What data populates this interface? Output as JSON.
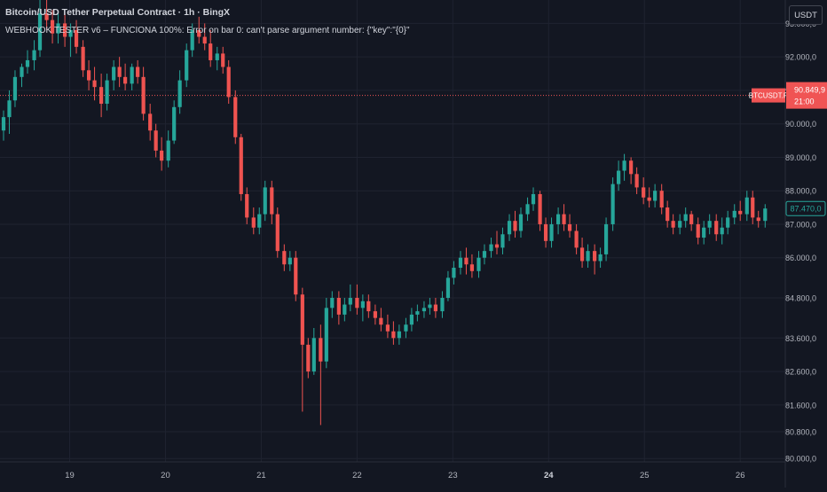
{
  "header": {
    "title": "Bitcoin/USD Tether Perpetual Contract · 1h · BingX",
    "message": "WEBHOOK TESTER v6 – FUNCIONA 100%: Error on bar 0: can't parse argument number: {\"key\":\"{0}\""
  },
  "currency_button": "USDT",
  "colors": {
    "background": "#131722",
    "grid": "#1f2330",
    "up": "#26a69a",
    "down": "#ef5350",
    "text": "#b2b5be"
  },
  "chart_data": {
    "type": "candlestick",
    "x_ticks": [
      {
        "label": "19",
        "t": 19.0,
        "bold": false
      },
      {
        "label": "20",
        "t": 20.0,
        "bold": false
      },
      {
        "label": "21",
        "t": 21.0,
        "bold": false
      },
      {
        "label": "22",
        "t": 22.0,
        "bold": false
      },
      {
        "label": "23",
        "t": 23.0,
        "bold": false
      },
      {
        "label": "24",
        "t": 24.0,
        "bold": true
      },
      {
        "label": "25",
        "t": 25.0,
        "bold": false
      },
      {
        "label": "26",
        "t": 26.0,
        "bold": false
      }
    ],
    "x_range": [
      18.31,
      26.35
    ],
    "y_ticks": [
      {
        "label": "93.000,0",
        "v": 93000
      },
      {
        "label": "92.000,0",
        "v": 92000
      },
      {
        "label": "91.000,0",
        "v": 91000
      },
      {
        "label": "90.000,0",
        "v": 90000
      },
      {
        "label": "89.000,0",
        "v": 89000
      },
      {
        "label": "88.000,0",
        "v": 88000
      },
      {
        "label": "87.000,0",
        "v": 87000
      },
      {
        "label": "86.000,0",
        "v": 86000
      },
      {
        "label": "84.800,0",
        "v": 84800
      },
      {
        "label": "83.600,0",
        "v": 83600
      },
      {
        "label": "82.600,0",
        "v": 82600
      },
      {
        "label": "81.600,0",
        "v": 81600
      },
      {
        "label": "80.800,0",
        "v": 80800
      },
      {
        "label": "80.000,0",
        "v": 80000
      }
    ],
    "y_range": [
      79900,
      93700
    ],
    "reference_line": {
      "value": 90849.9,
      "label": "90.849,9",
      "symbol": "BTCUSDT.P",
      "time": "21:00",
      "color": "#f05454"
    },
    "last_price": {
      "value": 87470,
      "label": "87.470,0",
      "color": "#26a69a"
    },
    "candles": [
      {
        "t": 18.31,
        "o": 89800,
        "h": 90400,
        "l": 89500,
        "c": 90200
      },
      {
        "t": 18.37,
        "o": 90200,
        "h": 91000,
        "l": 89700,
        "c": 90700
      },
      {
        "t": 18.43,
        "o": 90700,
        "h": 91600,
        "l": 90500,
        "c": 91400
      },
      {
        "t": 18.5,
        "o": 91400,
        "h": 91800,
        "l": 91100,
        "c": 91700
      },
      {
        "t": 18.56,
        "o": 91700,
        "h": 92200,
        "l": 91500,
        "c": 91900
      },
      {
        "t": 18.63,
        "o": 91900,
        "h": 92500,
        "l": 91600,
        "c": 92200
      },
      {
        "t": 18.69,
        "o": 92200,
        "h": 93900,
        "l": 92000,
        "c": 93300
      },
      {
        "t": 18.76,
        "o": 93300,
        "h": 93700,
        "l": 92800,
        "c": 93100
      },
      {
        "t": 18.82,
        "o": 93100,
        "h": 93400,
        "l": 92400,
        "c": 92700
      },
      {
        "t": 18.88,
        "o": 92700,
        "h": 93300,
        "l": 92400,
        "c": 93000
      },
      {
        "t": 18.95,
        "o": 93000,
        "h": 93300,
        "l": 92300,
        "c": 92600
      },
      {
        "t": 19.01,
        "o": 92600,
        "h": 93000,
        "l": 92000,
        "c": 92800
      },
      {
        "t": 19.07,
        "o": 92800,
        "h": 93100,
        "l": 92100,
        "c": 92300
      },
      {
        "t": 19.14,
        "o": 92300,
        "h": 92500,
        "l": 91400,
        "c": 91600
      },
      {
        "t": 19.2,
        "o": 91600,
        "h": 91900,
        "l": 91000,
        "c": 91300
      },
      {
        "t": 19.26,
        "o": 91300,
        "h": 91700,
        "l": 90700,
        "c": 91100
      },
      {
        "t": 19.33,
        "o": 91100,
        "h": 91500,
        "l": 90200,
        "c": 90600
      },
      {
        "t": 19.39,
        "o": 90600,
        "h": 91500,
        "l": 90400,
        "c": 91300
      },
      {
        "t": 19.46,
        "o": 91300,
        "h": 91900,
        "l": 91000,
        "c": 91700
      },
      {
        "t": 19.52,
        "o": 91700,
        "h": 92000,
        "l": 91100,
        "c": 91400
      },
      {
        "t": 19.58,
        "o": 91400,
        "h": 91800,
        "l": 91000,
        "c": 91200
      },
      {
        "t": 19.65,
        "o": 91200,
        "h": 91800,
        "l": 91000,
        "c": 91700
      },
      {
        "t": 19.71,
        "o": 91700,
        "h": 91900,
        "l": 91200,
        "c": 91400
      },
      {
        "t": 19.77,
        "o": 91400,
        "h": 91700,
        "l": 90100,
        "c": 90300
      },
      {
        "t": 19.84,
        "o": 90300,
        "h": 90600,
        "l": 89500,
        "c": 89800
      },
      {
        "t": 19.9,
        "o": 89800,
        "h": 90000,
        "l": 89000,
        "c": 89200
      },
      {
        "t": 19.96,
        "o": 89200,
        "h": 89600,
        "l": 88600,
        "c": 88900
      },
      {
        "t": 20.03,
        "o": 88900,
        "h": 89800,
        "l": 88700,
        "c": 89500
      },
      {
        "t": 20.09,
        "o": 89500,
        "h": 90700,
        "l": 89400,
        "c": 90500
      },
      {
        "t": 20.15,
        "o": 90500,
        "h": 91600,
        "l": 90300,
        "c": 91300
      },
      {
        "t": 20.22,
        "o": 91300,
        "h": 92400,
        "l": 91100,
        "c": 92200
      },
      {
        "t": 20.28,
        "o": 92200,
        "h": 93000,
        "l": 92000,
        "c": 92800
      },
      {
        "t": 20.35,
        "o": 92800,
        "h": 93200,
        "l": 92400,
        "c": 92600
      },
      {
        "t": 20.41,
        "o": 92600,
        "h": 93000,
        "l": 92200,
        "c": 92400
      },
      {
        "t": 20.47,
        "o": 92400,
        "h": 92800,
        "l": 91700,
        "c": 91900
      },
      {
        "t": 20.54,
        "o": 91900,
        "h": 92300,
        "l": 91600,
        "c": 92100
      },
      {
        "t": 20.6,
        "o": 92100,
        "h": 92300,
        "l": 91500,
        "c": 91700
      },
      {
        "t": 20.66,
        "o": 91700,
        "h": 91900,
        "l": 90600,
        "c": 90800
      },
      {
        "t": 20.73,
        "o": 90800,
        "h": 91000,
        "l": 89400,
        "c": 89600
      },
      {
        "t": 20.79,
        "o": 89600,
        "h": 89700,
        "l": 87700,
        "c": 87900
      },
      {
        "t": 20.85,
        "o": 87900,
        "h": 88100,
        "l": 87000,
        "c": 87200
      },
      {
        "t": 20.92,
        "o": 87200,
        "h": 87500,
        "l": 86700,
        "c": 86900
      },
      {
        "t": 20.98,
        "o": 86900,
        "h": 87500,
        "l": 86700,
        "c": 87300
      },
      {
        "t": 21.04,
        "o": 87300,
        "h": 88300,
        "l": 87100,
        "c": 88100
      },
      {
        "t": 21.11,
        "o": 88100,
        "h": 88300,
        "l": 87000,
        "c": 87300
      },
      {
        "t": 21.17,
        "o": 87300,
        "h": 87500,
        "l": 86000,
        "c": 86200
      },
      {
        "t": 21.24,
        "o": 86200,
        "h": 86400,
        "l": 85600,
        "c": 85800
      },
      {
        "t": 21.3,
        "o": 85800,
        "h": 86200,
        "l": 85600,
        "c": 86000
      },
      {
        "t": 21.36,
        "o": 86000,
        "h": 86200,
        "l": 84700,
        "c": 84900
      },
      {
        "t": 21.43,
        "o": 84900,
        "h": 85100,
        "l": 81400,
        "c": 83400
      },
      {
        "t": 21.49,
        "o": 83400,
        "h": 83600,
        "l": 82400,
        "c": 82600
      },
      {
        "t": 21.55,
        "o": 82600,
        "h": 83900,
        "l": 82500,
        "c": 83600
      },
      {
        "t": 21.62,
        "o": 83600,
        "h": 84000,
        "l": 81000,
        "c": 82900
      },
      {
        "t": 21.68,
        "o": 82900,
        "h": 84800,
        "l": 82700,
        "c": 84500
      },
      {
        "t": 21.74,
        "o": 84500,
        "h": 85000,
        "l": 84200,
        "c": 84800
      },
      {
        "t": 21.81,
        "o": 84800,
        "h": 85000,
        "l": 84000,
        "c": 84300
      },
      {
        "t": 21.87,
        "o": 84300,
        "h": 84800,
        "l": 84100,
        "c": 84600
      },
      {
        "t": 21.93,
        "o": 84600,
        "h": 85200,
        "l": 84400,
        "c": 84800
      },
      {
        "t": 22.0,
        "o": 84800,
        "h": 85200,
        "l": 84300,
        "c": 84500
      },
      {
        "t": 22.06,
        "o": 84500,
        "h": 84900,
        "l": 84100,
        "c": 84700
      },
      {
        "t": 22.12,
        "o": 84700,
        "h": 84900,
        "l": 84200,
        "c": 84400
      },
      {
        "t": 22.19,
        "o": 84400,
        "h": 84600,
        "l": 84000,
        "c": 84200
      },
      {
        "t": 22.25,
        "o": 84200,
        "h": 84500,
        "l": 83800,
        "c": 84000
      },
      {
        "t": 22.32,
        "o": 84000,
        "h": 84300,
        "l": 83600,
        "c": 83800
      },
      {
        "t": 22.38,
        "o": 83800,
        "h": 84100,
        "l": 83400,
        "c": 83600
      },
      {
        "t": 22.44,
        "o": 83600,
        "h": 84000,
        "l": 83400,
        "c": 83800
      },
      {
        "t": 22.51,
        "o": 83800,
        "h": 84200,
        "l": 83600,
        "c": 84000
      },
      {
        "t": 22.57,
        "o": 84000,
        "h": 84500,
        "l": 83800,
        "c": 84300
      },
      {
        "t": 22.63,
        "o": 84300,
        "h": 84600,
        "l": 84100,
        "c": 84400
      },
      {
        "t": 22.7,
        "o": 84400,
        "h": 84700,
        "l": 84200,
        "c": 84500
      },
      {
        "t": 22.76,
        "o": 84500,
        "h": 84800,
        "l": 84300,
        "c": 84600
      },
      {
        "t": 22.82,
        "o": 84600,
        "h": 84800,
        "l": 84200,
        "c": 84400
      },
      {
        "t": 22.89,
        "o": 84400,
        "h": 85000,
        "l": 84200,
        "c": 84800
      },
      {
        "t": 22.95,
        "o": 84800,
        "h": 85600,
        "l": 84700,
        "c": 85400
      },
      {
        "t": 23.01,
        "o": 85400,
        "h": 85900,
        "l": 85200,
        "c": 85700
      },
      {
        "t": 23.08,
        "o": 85700,
        "h": 86200,
        "l": 85500,
        "c": 86000
      },
      {
        "t": 23.14,
        "o": 86000,
        "h": 86300,
        "l": 85500,
        "c": 85800
      },
      {
        "t": 23.2,
        "o": 85800,
        "h": 86100,
        "l": 85400,
        "c": 85600
      },
      {
        "t": 23.27,
        "o": 85600,
        "h": 86200,
        "l": 85400,
        "c": 86000
      },
      {
        "t": 23.33,
        "o": 86000,
        "h": 86400,
        "l": 85800,
        "c": 86200
      },
      {
        "t": 23.4,
        "o": 86200,
        "h": 86600,
        "l": 86000,
        "c": 86400
      },
      {
        "t": 23.46,
        "o": 86400,
        "h": 86800,
        "l": 86100,
        "c": 86300
      },
      {
        "t": 23.52,
        "o": 86300,
        "h": 86900,
        "l": 86100,
        "c": 86700
      },
      {
        "t": 23.59,
        "o": 86700,
        "h": 87300,
        "l": 86500,
        "c": 87100
      },
      {
        "t": 23.65,
        "o": 87100,
        "h": 87400,
        "l": 86600,
        "c": 86800
      },
      {
        "t": 23.71,
        "o": 86800,
        "h": 87500,
        "l": 86600,
        "c": 87300
      },
      {
        "t": 23.78,
        "o": 87300,
        "h": 87800,
        "l": 87100,
        "c": 87600
      },
      {
        "t": 23.84,
        "o": 87600,
        "h": 88100,
        "l": 87400,
        "c": 87900
      },
      {
        "t": 23.91,
        "o": 87900,
        "h": 88000,
        "l": 86800,
        "c": 87000
      },
      {
        "t": 23.97,
        "o": 87000,
        "h": 87200,
        "l": 86300,
        "c": 86500
      },
      {
        "t": 24.03,
        "o": 86500,
        "h": 87200,
        "l": 86300,
        "c": 87000
      },
      {
        "t": 24.1,
        "o": 87000,
        "h": 87500,
        "l": 86700,
        "c": 87300
      },
      {
        "t": 24.16,
        "o": 87300,
        "h": 87600,
        "l": 86800,
        "c": 87000
      },
      {
        "t": 24.22,
        "o": 87000,
        "h": 87300,
        "l": 86600,
        "c": 86800
      },
      {
        "t": 24.29,
        "o": 86800,
        "h": 87000,
        "l": 86100,
        "c": 86300
      },
      {
        "t": 24.35,
        "o": 86300,
        "h": 86600,
        "l": 85700,
        "c": 85900
      },
      {
        "t": 24.41,
        "o": 85900,
        "h": 86400,
        "l": 85700,
        "c": 86200
      },
      {
        "t": 24.48,
        "o": 86200,
        "h": 86400,
        "l": 85500,
        "c": 85900
      },
      {
        "t": 24.54,
        "o": 85900,
        "h": 86300,
        "l": 85700,
        "c": 86100
      },
      {
        "t": 24.6,
        "o": 86100,
        "h": 87200,
        "l": 85900,
        "c": 87000
      },
      {
        "t": 24.67,
        "o": 87000,
        "h": 88400,
        "l": 86800,
        "c": 88200
      },
      {
        "t": 24.73,
        "o": 88200,
        "h": 88900,
        "l": 88000,
        "c": 88600
      },
      {
        "t": 24.79,
        "o": 88600,
        "h": 89100,
        "l": 88300,
        "c": 88900
      },
      {
        "t": 24.86,
        "o": 88900,
        "h": 89000,
        "l": 88200,
        "c": 88500
      },
      {
        "t": 24.92,
        "o": 88500,
        "h": 88700,
        "l": 87900,
        "c": 88100
      },
      {
        "t": 24.99,
        "o": 88100,
        "h": 88400,
        "l": 87600,
        "c": 87800
      },
      {
        "t": 25.05,
        "o": 87800,
        "h": 88100,
        "l": 87500,
        "c": 87700
      },
      {
        "t": 25.11,
        "o": 87700,
        "h": 88200,
        "l": 87500,
        "c": 88000
      },
      {
        "t": 25.18,
        "o": 88000,
        "h": 88200,
        "l": 87300,
        "c": 87500
      },
      {
        "t": 25.24,
        "o": 87500,
        "h": 87700,
        "l": 86900,
        "c": 87100
      },
      {
        "t": 25.3,
        "o": 87100,
        "h": 87300,
        "l": 86700,
        "c": 86900
      },
      {
        "t": 25.37,
        "o": 86900,
        "h": 87300,
        "l": 86700,
        "c": 87100
      },
      {
        "t": 25.43,
        "o": 87100,
        "h": 87500,
        "l": 86900,
        "c": 87300
      },
      {
        "t": 25.49,
        "o": 87300,
        "h": 87400,
        "l": 86800,
        "c": 87000
      },
      {
        "t": 25.56,
        "o": 87000,
        "h": 87200,
        "l": 86400,
        "c": 86600
      },
      {
        "t": 25.62,
        "o": 86600,
        "h": 87100,
        "l": 86400,
        "c": 86900
      },
      {
        "t": 25.68,
        "o": 86900,
        "h": 87300,
        "l": 86700,
        "c": 87100
      },
      {
        "t": 25.75,
        "o": 87100,
        "h": 87300,
        "l": 86500,
        "c": 86700
      },
      {
        "t": 25.81,
        "o": 86700,
        "h": 87200,
        "l": 86400,
        "c": 86900
      },
      {
        "t": 25.87,
        "o": 86900,
        "h": 87400,
        "l": 86700,
        "c": 87200
      },
      {
        "t": 25.94,
        "o": 87200,
        "h": 87600,
        "l": 87000,
        "c": 87400
      },
      {
        "t": 26.0,
        "o": 87400,
        "h": 87700,
        "l": 87100,
        "c": 87300
      },
      {
        "t": 26.07,
        "o": 87300,
        "h": 88000,
        "l": 87100,
        "c": 87800
      },
      {
        "t": 26.13,
        "o": 87800,
        "h": 88000,
        "l": 87000,
        "c": 87200
      },
      {
        "t": 26.19,
        "o": 87200,
        "h": 87400,
        "l": 86900,
        "c": 87100
      },
      {
        "t": 26.26,
        "o": 87100,
        "h": 87600,
        "l": 86900,
        "c": 87470
      }
    ]
  }
}
